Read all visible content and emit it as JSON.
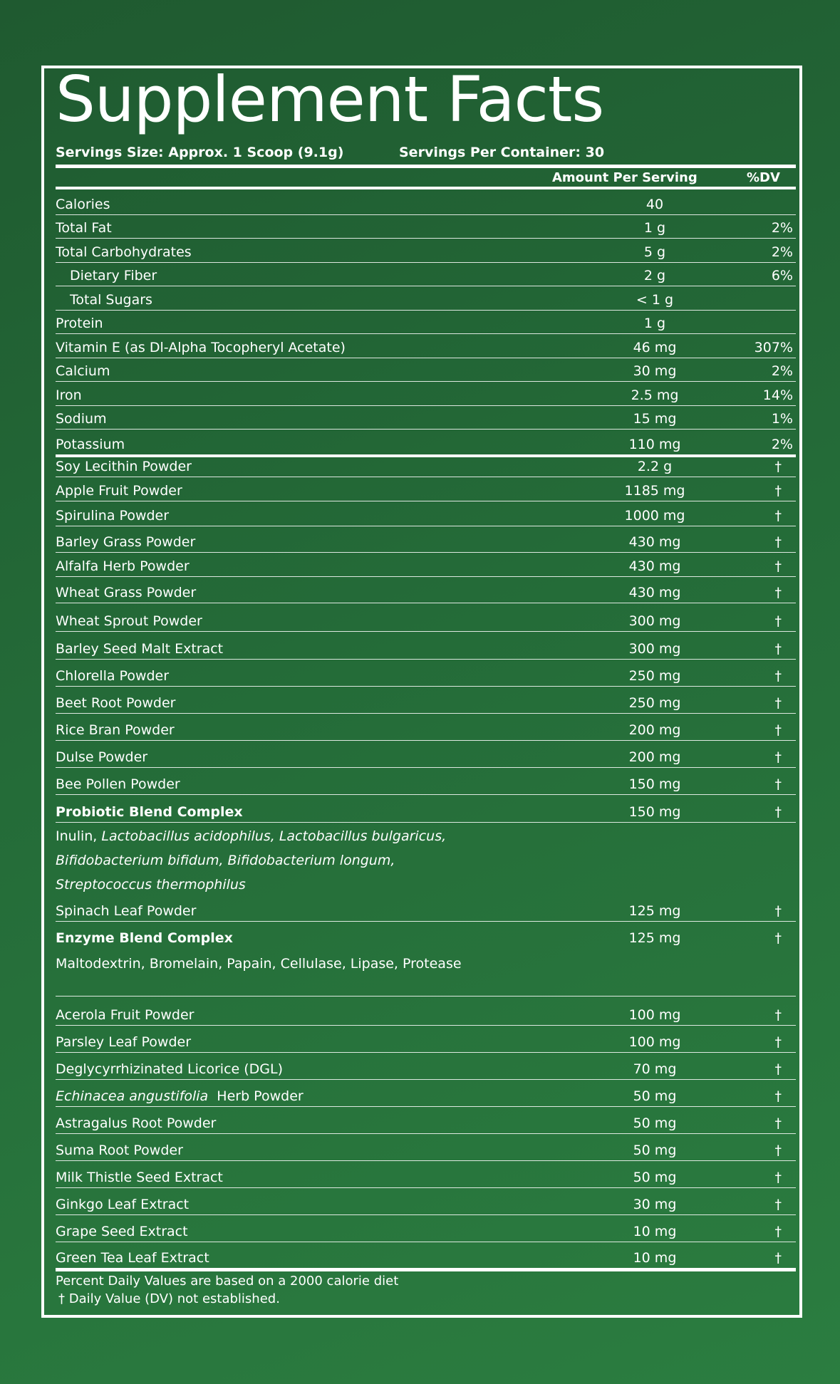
{
  "title": "Supplement Facts",
  "serving_size": "Servings Size: Approx. 1 Scoop (9.1g)",
  "servings_per_container": "Servings Per Container: 30",
  "columns": {
    "amount": "Amount Per Serving",
    "dv": "%DV"
  },
  "nutrients": [
    {
      "name": "Calories",
      "amount": "40",
      "dv": ""
    },
    {
      "name": "Total Fat",
      "amount": "1 g",
      "dv": "2%"
    },
    {
      "name": "Total Carbohydrates",
      "amount": "5 g",
      "dv": "2%"
    },
    {
      "name": "Dietary Fiber",
      "amount": "2 g",
      "dv": "6%"
    },
    {
      "name": "Total Sugars",
      "amount": "< 1 g",
      "dv": ""
    },
    {
      "name": "Protein",
      "amount": "1 g",
      "dv": ""
    },
    {
      "name": "Vitamin E (as Dl-Alpha Tocopheryl Acetate)",
      "amount": "46 mg",
      "dv": "307%"
    },
    {
      "name": "Calcium",
      "amount": "30 mg",
      "dv": "2%"
    },
    {
      "name": "Iron",
      "amount": "2.5 mg",
      "dv": "14%"
    },
    {
      "name": "Sodium",
      "amount": "15 mg",
      "dv": "1%"
    },
    {
      "name": "Potassium",
      "amount": "110 mg",
      "dv": "2%"
    }
  ],
  "ingredients": [
    {
      "name": "Soy Lecithin Powder",
      "amount": "2.2 g",
      "dv": "†"
    },
    {
      "name": "Apple Fruit Powder",
      "amount": "1185 mg",
      "dv": "†"
    },
    {
      "name": "Spirulina Powder",
      "amount": "1000 mg",
      "dv": "†"
    },
    {
      "name": "Barley Grass Powder",
      "amount": "430 mg",
      "dv": "†"
    },
    {
      "name": "Alfalfa Herb Powder",
      "amount": "430 mg",
      "dv": "†"
    },
    {
      "name": "Wheat Grass Powder",
      "amount": "430 mg",
      "dv": "†"
    },
    {
      "name": "Wheat Sprout Powder",
      "amount": "300 mg",
      "dv": "†"
    },
    {
      "name": "Barley Seed Malt Extract",
      "amount": "300 mg",
      "dv": "†"
    },
    {
      "name": "Chlorella Powder",
      "amount": "250 mg",
      "dv": "†"
    },
    {
      "name": "Beet Root Powder",
      "amount": "250 mg",
      "dv": "†"
    },
    {
      "name": "Rice Bran Powder",
      "amount": "200 mg",
      "dv": "†"
    },
    {
      "name": "Dulse Powder",
      "amount": "200 mg",
      "dv": "†"
    },
    {
      "name": "Bee Pollen Powder",
      "amount": "150 mg",
      "dv": "†"
    },
    {
      "name": "Probiotic Blend Complex",
      "amount": "150 mg",
      "dv": "†"
    },
    {
      "name": "Spinach Leaf Powder",
      "amount": "125 mg",
      "dv": "†"
    },
    {
      "name": "Enzyme Blend Complex",
      "amount": "125 mg",
      "dv": "†"
    },
    {
      "name": "Acerola Fruit Powder",
      "amount": "100 mg",
      "dv": "†"
    },
    {
      "name": "Parsley Leaf Powder",
      "amount": "100 mg",
      "dv": "†"
    },
    {
      "name": "Deglycyrrhizinated Licorice (DGL)",
      "amount": "70 mg",
      "dv": "†"
    },
    {
      "name": "Echinacea angustifolia  Herb Powder",
      "amount": "50 mg",
      "dv": "†"
    },
    {
      "name": "Astragalus Root Powder",
      "amount": "50 mg",
      "dv": "†"
    },
    {
      "name": "Suma Root Powder",
      "amount": "50 mg",
      "dv": "†"
    },
    {
      "name": "Milk Thistle Seed Extract",
      "amount": "50 mg",
      "dv": "†"
    },
    {
      "name": "Ginkgo Leaf Extract",
      "amount": "30 mg",
      "dv": "†"
    },
    {
      "name": "Grape Seed Extract",
      "amount": "10 mg",
      "dv": "†"
    },
    {
      "name": "Green Tea Leaf Extract",
      "amount": "10 mg",
      "dv": "†"
    }
  ],
  "probiotic_desc": {
    "line1_plain": "Inulin, ",
    "line1_italic": "Lactobacillus acidophilus, Lactobacillus bulgaricus,",
    "line2": "Bifidobacterium bifidum, Bifidobacterium longum,",
    "line3": "Streptococcus thermophilus"
  },
  "enzyme_desc": "Maltodextrin, Bromelain, Papain, Cellulase, Lipase, Protease",
  "footnote_1": "Percent Daily Values are based on a 2000 calorie diet",
  "footnote_2": "† Daily Value (DV) not established."
}
